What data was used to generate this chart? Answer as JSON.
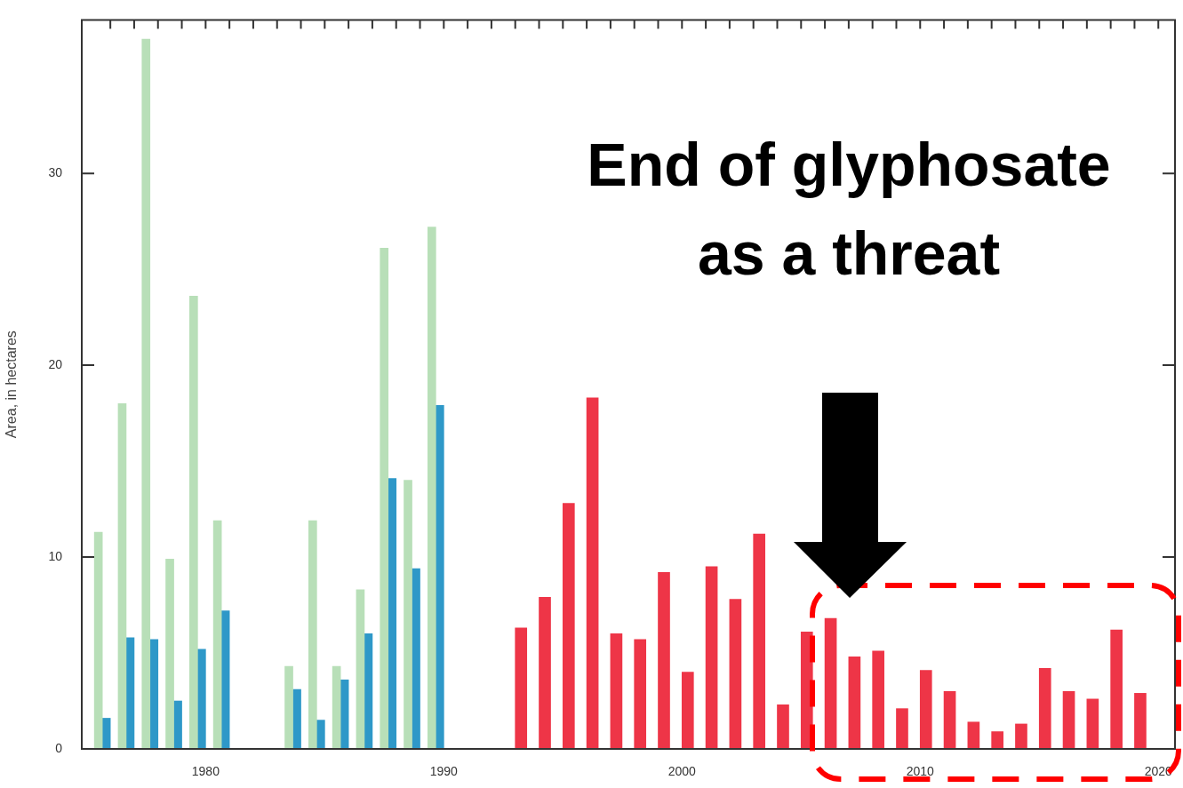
{
  "chart_data": {
    "type": "bar",
    "ylabel": "Area, in hectares",
    "x": [
      1976,
      1977,
      1978,
      1979,
      1980,
      1981,
      1984,
      1985,
      1986,
      1987,
      1988,
      1989,
      1990
    ],
    "series": [
      {
        "color": "#b8dfb8",
        "values": [
          11.3,
          18.0,
          37.0,
          9.9,
          23.6,
          11.9,
          4.3,
          11.9,
          4.3,
          8.3,
          26.1,
          14.0,
          27.2
        ]
      },
      {
        "color": "#2e98c8",
        "values": [
          1.6,
          5.8,
          5.7,
          2.5,
          5.2,
          7.2,
          3.1,
          1.5,
          3.6,
          6.0,
          14.1,
          9.4,
          17.9
        ]
      },
      {
        "color": "#ee3547",
        "x": [
          1993,
          1994,
          1995,
          1996,
          1997,
          1998,
          1999,
          2000,
          2001,
          2002,
          2003,
          2004,
          2005,
          2006,
          2007,
          2008,
          2009,
          2010,
          2011,
          2012,
          2013,
          2014,
          2015,
          2016,
          2017,
          2018,
          2019
        ],
        "values": [
          6.3,
          7.9,
          12.8,
          18.3,
          6.0,
          5.7,
          9.2,
          4.0,
          9.5,
          7.8,
          11.2,
          2.3,
          6.1,
          6.8,
          4.8,
          5.1,
          2.1,
          4.1,
          3.0,
          1.4,
          0.9,
          1.3,
          4.2,
          3.0,
          2.6,
          6.2,
          2.9
        ]
      }
    ],
    "xlim": [
      1974.8,
      2020.7
    ],
    "ylim": [
      0,
      38
    ],
    "xticks": [
      {
        "value": 1976,
        "label": null
      },
      {
        "value": 1977,
        "label": null
      },
      {
        "value": 1978,
        "label": null
      },
      {
        "value": 1979,
        "label": null
      },
      1980,
      {
        "value": 1981,
        "label": null
      },
      {
        "value": 1982,
        "label": null
      },
      {
        "value": 1983,
        "label": null
      },
      {
        "value": 1984,
        "label": null
      },
      {
        "value": 1985,
        "label": null
      },
      {
        "value": 1986,
        "label": null
      },
      {
        "value": 1987,
        "label": null
      },
      {
        "value": 1988,
        "label": null
      },
      {
        "value": 1989,
        "label": null
      },
      1990,
      {
        "value": 1991,
        "label": null
      },
      {
        "value": 1992,
        "label": null
      },
      {
        "value": 1993,
        "label": null
      },
      {
        "value": 1994,
        "label": null
      },
      {
        "value": 1995,
        "label": null
      },
      {
        "value": 1996,
        "label": null
      },
      {
        "value": 1997,
        "label": null
      },
      {
        "value": 1998,
        "label": null
      },
      {
        "value": 1999,
        "label": null
      },
      2000,
      {
        "value": 2001,
        "label": null
      },
      {
        "value": 2002,
        "label": null
      },
      {
        "value": 2003,
        "label": null
      },
      {
        "value": 2004,
        "label": null
      },
      {
        "value": 2005,
        "label": null
      },
      {
        "value": 2006,
        "label": null
      },
      {
        "value": 2007,
        "label": null
      },
      {
        "value": 2008,
        "label": null
      },
      {
        "value": 2009,
        "label": null
      },
      2010,
      {
        "value": 2011,
        "label": null
      },
      {
        "value": 2012,
        "label": null
      },
      {
        "value": 2013,
        "label": null
      },
      {
        "value": 2014,
        "label": null
      },
      {
        "value": 2015,
        "label": null
      },
      {
        "value": 2016,
        "label": null
      },
      {
        "value": 2017,
        "label": null
      },
      {
        "value": 2018,
        "label": null
      },
      {
        "value": 2019,
        "label": null
      },
      2020
    ],
    "yticks": [
      0,
      10,
      20,
      30
    ],
    "annotations": [
      "End of glyphosate as a threat"
    ]
  }
}
